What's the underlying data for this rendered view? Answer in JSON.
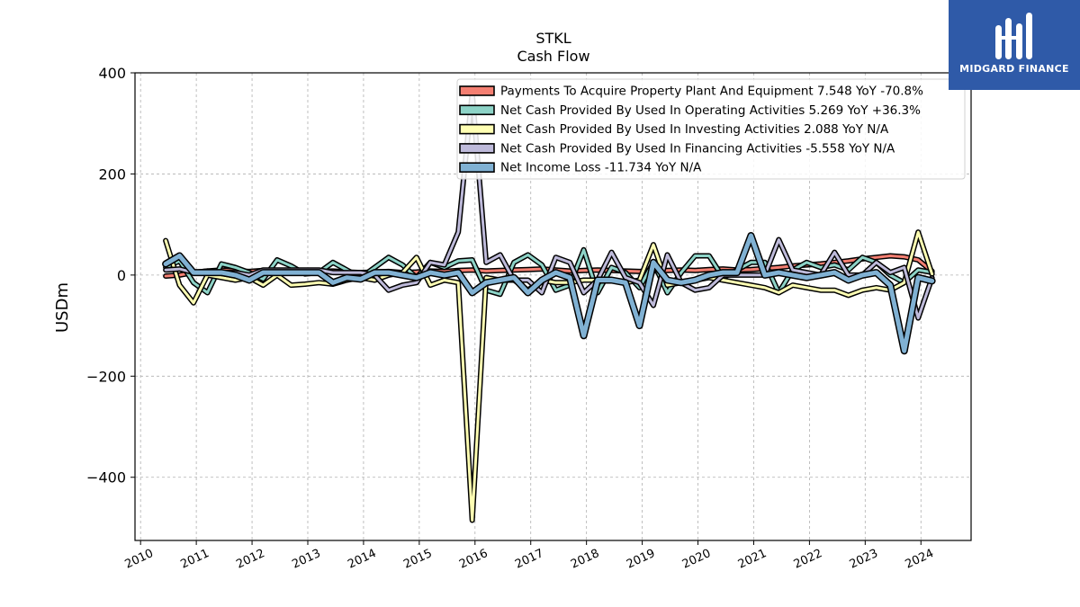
{
  "brand": {
    "name": "MIDGARD FINANCE",
    "color": "#2f5aa8"
  },
  "chart_data": {
    "type": "line",
    "title": "STKL",
    "subtitle": "Cash Flow",
    "xlabel": "",
    "ylabel": "USDm",
    "xlim": [
      2009.9,
      2024.9
    ],
    "ylim": [
      -525,
      400
    ],
    "x_ticks": [
      "2010",
      "2011",
      "2012",
      "2013",
      "2014",
      "2015",
      "2016",
      "2017",
      "2018",
      "2019",
      "2020",
      "2021",
      "2022",
      "2023",
      "2024"
    ],
    "y_ticks": [
      400,
      200,
      0,
      -200,
      -400
    ],
    "y_tick_labels": [
      "400",
      "200",
      "0",
      "−200",
      "−400"
    ],
    "grid": true,
    "legend_position": "top-right",
    "series": [
      {
        "name": "Payments To Acquire Property Plant And Equipment  7.548 YoY -70.8%",
        "color": "#f47f72",
        "x": [
          2010.45,
          2010.7,
          2010.95,
          2011.2,
          2011.45,
          2011.7,
          2011.95,
          2012.2,
          2012.45,
          2012.7,
          2012.95,
          2013.2,
          2013.45,
          2013.7,
          2013.95,
          2014.2,
          2014.45,
          2014.7,
          2014.95,
          2015.2,
          2015.45,
          2015.7,
          2015.95,
          2016.2,
          2016.45,
          2016.7,
          2016.95,
          2017.2,
          2017.45,
          2017.7,
          2017.95,
          2018.2,
          2018.45,
          2018.7,
          2018.95,
          2019.2,
          2019.45,
          2019.7,
          2019.95,
          2020.2,
          2020.45,
          2020.7,
          2020.95,
          2021.2,
          2021.45,
          2021.7,
          2021.95,
          2022.2,
          2022.45,
          2022.7,
          2022.95,
          2023.2,
          2023.45,
          2023.7,
          2023.95,
          2024.2
        ],
        "values": [
          -2,
          0,
          5,
          8,
          10,
          8,
          7,
          9,
          8,
          10,
          8,
          7,
          8,
          6,
          5,
          6,
          7,
          5,
          6,
          8,
          7,
          9,
          10,
          8,
          9,
          10,
          11,
          12,
          10,
          8,
          9,
          10,
          9,
          8,
          7,
          8,
          9,
          10,
          9,
          11,
          12,
          10,
          11,
          13,
          15,
          18,
          20,
          22,
          25,
          28,
          32,
          35,
          38,
          36,
          30,
          7.5
        ],
        "width": 3
      },
      {
        "name": "Net Cash Provided By Used In Operating Activities  5.269 YoY +36.3%",
        "color": "#8dd3c7",
        "x": [
          2010.45,
          2010.7,
          2010.95,
          2011.2,
          2011.45,
          2011.7,
          2011.95,
          2012.2,
          2012.45,
          2012.7,
          2012.95,
          2013.2,
          2013.45,
          2013.7,
          2013.95,
          2014.2,
          2014.45,
          2014.7,
          2014.95,
          2015.2,
          2015.45,
          2015.7,
          2015.95,
          2016.2,
          2016.45,
          2016.7,
          2016.95,
          2017.2,
          2017.45,
          2017.7,
          2017.95,
          2018.2,
          2018.45,
          2018.7,
          2018.95,
          2019.2,
          2019.45,
          2019.7,
          2019.95,
          2020.2,
          2020.45,
          2020.7,
          2020.95,
          2021.2,
          2021.45,
          2021.7,
          2021.95,
          2022.2,
          2022.45,
          2022.7,
          2022.95,
          2023.2,
          2023.45,
          2023.7,
          2023.95,
          2024.2
        ],
        "values": [
          15,
          28,
          -15,
          -35,
          22,
          15,
          5,
          -8,
          30,
          18,
          2,
          5,
          25,
          10,
          -5,
          15,
          35,
          20,
          -5,
          25,
          15,
          28,
          30,
          -30,
          -38,
          25,
          40,
          20,
          -30,
          -20,
          50,
          -35,
          15,
          5,
          -25,
          25,
          -35,
          5,
          38,
          38,
          -5,
          10,
          25,
          25,
          -35,
          10,
          25,
          15,
          20,
          10,
          35,
          25,
          0,
          -15,
          10,
          5.3
        ],
        "width": 3
      },
      {
        "name": "Net Cash Provided By Used In Investing Activities  2.088 YoY N/A",
        "color": "#ffffb3",
        "x": [
          2010.45,
          2010.7,
          2010.95,
          2011.2,
          2011.45,
          2011.7,
          2011.95,
          2012.2,
          2012.45,
          2012.7,
          2012.95,
          2013.2,
          2013.45,
          2013.7,
          2013.95,
          2014.2,
          2014.45,
          2014.7,
          2014.95,
          2015.2,
          2015.45,
          2015.7,
          2015.95,
          2016.2,
          2016.45,
          2016.7,
          2016.95,
          2017.2,
          2017.45,
          2017.7,
          2017.95,
          2018.2,
          2018.45,
          2018.7,
          2018.95,
          2019.2,
          2019.45,
          2019.7,
          2019.95,
          2020.2,
          2020.45,
          2020.7,
          2020.95,
          2021.2,
          2021.45,
          2021.7,
          2021.95,
          2022.2,
          2022.45,
          2022.7,
          2022.95,
          2023.2,
          2023.45,
          2023.7,
          2023.95,
          2024.2
        ],
        "values": [
          68,
          -20,
          -55,
          0,
          -5,
          -10,
          -5,
          -20,
          0,
          -20,
          -18,
          -15,
          -18,
          -10,
          -5,
          -10,
          0,
          5,
          35,
          -20,
          -10,
          -15,
          -485,
          -5,
          -10,
          -10,
          -30,
          -10,
          -15,
          -15,
          -10,
          -10,
          -10,
          -15,
          -10,
          60,
          -20,
          -15,
          -10,
          -5,
          -10,
          -15,
          -20,
          -25,
          -35,
          -20,
          -25,
          -30,
          -30,
          -40,
          -30,
          -25,
          -30,
          -15,
          85,
          2.1
        ],
        "width": 3
      },
      {
        "name": "Net Cash Provided By Used In Financing Activities  -5.558 YoY N/A",
        "color": "#bebada",
        "x": [
          2010.45,
          2010.7,
          2010.95,
          2011.2,
          2011.45,
          2011.7,
          2011.95,
          2012.2,
          2012.45,
          2012.7,
          2012.95,
          2013.2,
          2013.45,
          2013.7,
          2013.95,
          2014.2,
          2014.45,
          2014.7,
          2014.95,
          2015.2,
          2015.45,
          2015.7,
          2015.95,
          2016.2,
          2016.45,
          2016.7,
          2016.95,
          2017.2,
          2017.45,
          2017.7,
          2017.95,
          2018.2,
          2018.45,
          2018.7,
          2018.95,
          2019.2,
          2019.45,
          2019.7,
          2019.95,
          2020.2,
          2020.45,
          2020.7,
          2020.95,
          2021.2,
          2021.45,
          2021.7,
          2021.95,
          2022.2,
          2022.45,
          2022.7,
          2022.95,
          2023.2,
          2023.45,
          2023.7,
          2023.95,
          2024.2
        ],
        "values": [
          10,
          12,
          5,
          8,
          5,
          5,
          0,
          10,
          10,
          10,
          10,
          10,
          5,
          5,
          5,
          0,
          -30,
          -20,
          -15,
          25,
          20,
          85,
          360,
          25,
          40,
          -10,
          -10,
          -35,
          35,
          25,
          -35,
          -10,
          45,
          -5,
          -15,
          -60,
          40,
          -15,
          -30,
          -25,
          0,
          0,
          0,
          0,
          70,
          10,
          5,
          0,
          45,
          0,
          0,
          25,
          5,
          15,
          -85,
          -5.6
        ],
        "width": 3
      },
      {
        "name": "Net Income Loss  -11.734 YoY N/A",
        "color": "#80b1d3",
        "x": [
          2010.45,
          2010.7,
          2010.95,
          2011.2,
          2011.45,
          2011.7,
          2011.95,
          2012.2,
          2012.45,
          2012.7,
          2012.95,
          2013.2,
          2013.45,
          2013.7,
          2013.95,
          2014.2,
          2014.45,
          2014.7,
          2014.95,
          2015.2,
          2015.45,
          2015.7,
          2015.95,
          2016.2,
          2016.45,
          2016.7,
          2016.95,
          2017.2,
          2017.45,
          2017.7,
          2017.95,
          2018.2,
          2018.45,
          2018.7,
          2018.95,
          2019.2,
          2019.45,
          2019.7,
          2019.95,
          2020.2,
          2020.45,
          2020.7,
          2020.95,
          2021.2,
          2021.45,
          2021.7,
          2021.95,
          2022.2,
          2022.45,
          2022.7,
          2022.95,
          2023.2,
          2023.45,
          2023.7,
          2023.95,
          2024.2
        ],
        "values": [
          22,
          38,
          5,
          5,
          5,
          0,
          -10,
          5,
          5,
          5,
          5,
          5,
          -15,
          -5,
          -8,
          5,
          5,
          0,
          -5,
          5,
          0,
          5,
          -35,
          -15,
          -10,
          -5,
          -35,
          -10,
          5,
          -5,
          -120,
          -10,
          -10,
          -15,
          -100,
          25,
          -10,
          -15,
          -10,
          0,
          5,
          5,
          78,
          0,
          5,
          0,
          -5,
          0,
          5,
          -10,
          0,
          5,
          -20,
          -150,
          -5,
          -11.7
        ],
        "width": 5
      }
    ]
  }
}
